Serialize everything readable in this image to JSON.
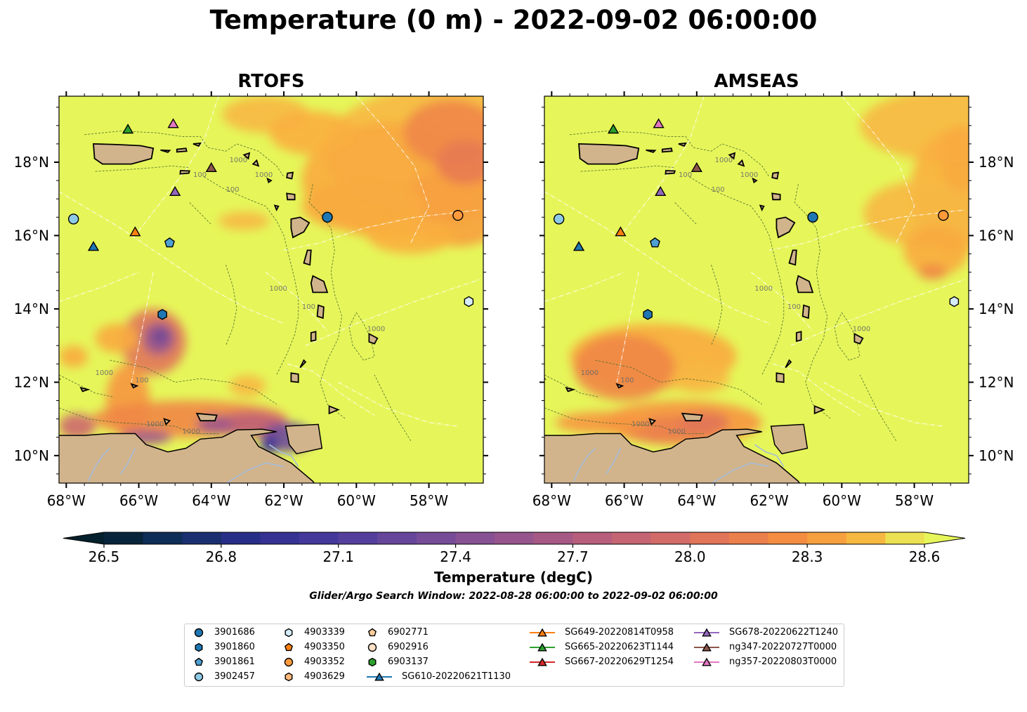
{
  "figure": {
    "title": "Temperature (0 m) - 2022-09-02 06:00:00",
    "panels": [
      {
        "title": "RTOFS",
        "model": "rtofs"
      },
      {
        "title": "AMSEAS",
        "model": "amseas"
      }
    ],
    "lon_ticks": [
      "68°W",
      "66°W",
      "64°W",
      "62°W",
      "60°W",
      "58°W"
    ],
    "lat_ticks": [
      "18°N",
      "16°N",
      "14°N",
      "12°N",
      "10°N"
    ],
    "extent": {
      "lon": [
        -68.2,
        -56.5
      ],
      "lat": [
        9.25,
        19.8
      ]
    },
    "contour_labels": [
      "100",
      "1000"
    ],
    "colors": {
      "ocean_base": "#e6f65a",
      "land": "#d2b48c",
      "river": "#a6bddb"
    }
  },
  "colorbar": {
    "label": "Temperature (degC)",
    "min": 26.5,
    "max": 28.6,
    "ticks": [
      "26.5",
      "26.8",
      "27.1",
      "27.4",
      "27.7",
      "28.0",
      "28.3",
      "28.6"
    ],
    "extend": "both",
    "colormap": "thermal"
  },
  "search_window": "Glider/Argo Search Window: 2022-08-28 06:00:00 to 2022-09-02 06:00:00",
  "legend": {
    "items": [
      {
        "label": "3901686",
        "marker": "circle",
        "color": "#1f77b4"
      },
      {
        "label": "3901860",
        "marker": "hexagon",
        "color": "#1f77b4"
      },
      {
        "label": "3901861",
        "marker": "pentagon",
        "color": "#4e9fd2"
      },
      {
        "label": "3902457",
        "marker": "circle",
        "color": "#8ecae6"
      },
      {
        "label": "4903339",
        "marker": "hexagon",
        "color": "#d6ecfa"
      },
      {
        "label": "4903350",
        "marker": "pentagon",
        "color": "#ff7f0e"
      },
      {
        "label": "4903352",
        "marker": "circle",
        "color": "#ff9a3c"
      },
      {
        "label": "4903629",
        "marker": "hexagon",
        "color": "#ffb87a"
      },
      {
        "label": "6902771",
        "marker": "pentagon",
        "color": "#ffcc99"
      },
      {
        "label": "6902916",
        "marker": "circle",
        "color": "#ffe2c6"
      },
      {
        "label": "6903137",
        "marker": "hexagon",
        "color": "#2ca02c"
      },
      {
        "label": "SG610-20220621T1130",
        "marker": "triangle",
        "color": "#1f77b4",
        "line": true
      },
      {
        "label": "SG649-20220814T0958",
        "marker": "triangle",
        "color": "#ff7f0e",
        "line": true
      },
      {
        "label": "SG665-20220623T1144",
        "marker": "triangle",
        "color": "#2ca02c",
        "line": true
      },
      {
        "label": "SG667-20220629T1254",
        "marker": "triangle",
        "color": "#d62728",
        "line": true
      },
      {
        "label": "SG678-20220622T1240",
        "marker": "triangle",
        "color": "#9467bd",
        "line": true
      },
      {
        "label": "ng347-20220727T0000",
        "marker": "triangle",
        "color": "#8c564b",
        "line": true
      },
      {
        "label": "ng357-20220803T0000",
        "marker": "triangle",
        "color": "#e377c2",
        "line": true
      }
    ]
  },
  "observations": [
    {
      "name": "3901686",
      "lon": -60.8,
      "lat": 16.5
    },
    {
      "name": "3901860",
      "lon": -65.35,
      "lat": 13.85
    },
    {
      "name": "3901861",
      "lon": -65.15,
      "lat": 15.8
    },
    {
      "name": "3902457",
      "lon": -67.8,
      "lat": 16.45
    },
    {
      "name": "4903339",
      "lon": -56.9,
      "lat": 14.2
    },
    {
      "name": "4903352",
      "lon": -57.2,
      "lat": 16.55
    },
    {
      "name": "SG610-20220621T1130",
      "lon": -67.25,
      "lat": 15.7
    },
    {
      "name": "SG649-20220814T0958",
      "lon": -66.1,
      "lat": 16.1
    },
    {
      "name": "SG665-20220623T1144",
      "lon": -66.3,
      "lat": 18.9
    },
    {
      "name": "SG678-20220622T1240",
      "lon": -65.0,
      "lat": 17.2
    },
    {
      "name": "ng347-20220727T0000",
      "lon": -64.0,
      "lat": 17.85
    },
    {
      "name": "ng357-20220803T0000",
      "lon": -65.05,
      "lat": 19.05
    }
  ]
}
